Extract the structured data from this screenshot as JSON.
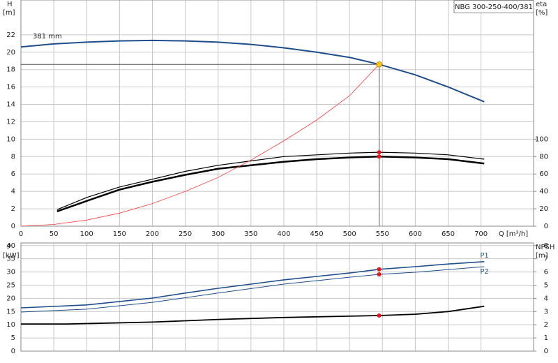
{
  "chart_data": [
    {
      "type": "line",
      "title": "NBG 300-250-400/381",
      "y_label": "H",
      "y_unit": "[m]",
      "y2_label": "eta",
      "y2_unit": "[%]",
      "x_label": "Q [m³/h]",
      "annotation": "381 mm",
      "grid": true,
      "xlim": [
        0,
        780
      ],
      "xticks": [
        0,
        50,
        100,
        150,
        200,
        250,
        300,
        350,
        400,
        450,
        500,
        550,
        600,
        650,
        700
      ],
      "ylim": [
        0,
        26
      ],
      "yticks": [
        0,
        2,
        4,
        6,
        8,
        10,
        12,
        14,
        16,
        18,
        20,
        22
      ],
      "y2lim": [
        0,
        260
      ],
      "y2ticks": [
        0,
        20,
        40,
        60,
        80,
        100
      ],
      "series": [
        {
          "color": "#1f4e8c",
          "width": 2,
          "x": [
            0,
            50,
            100,
            150,
            200,
            250,
            300,
            350,
            400,
            450,
            500,
            545,
            600,
            650,
            705
          ],
          "values": [
            20.6,
            20.95,
            21.15,
            21.3,
            21.35,
            21.3,
            21.15,
            20.9,
            20.5,
            20.0,
            19.4,
            18.6,
            17.4,
            16.0,
            14.3
          ]
        },
        {
          "color": "#000000",
          "width": 1.2,
          "axis": "y2",
          "x": [
            55,
            100,
            150,
            200,
            250,
            300,
            350,
            400,
            450,
            500,
            545,
            600,
            650,
            705
          ],
          "values": [
            19,
            33,
            45,
            54,
            63,
            70,
            75,
            80,
            82,
            84,
            85,
            84,
            82,
            77
          ]
        },
        {
          "color": "#000000",
          "width": 2.5,
          "axis": "y2",
          "x": [
            55,
            100,
            150,
            200,
            250,
            300,
            350,
            400,
            450,
            500,
            545,
            600,
            650,
            705
          ],
          "values": [
            17,
            29,
            42,
            51,
            59,
            66,
            70,
            74,
            77,
            79,
            80,
            79,
            77,
            72
          ]
        },
        {
          "color": "#ff3b3b",
          "width": 0.8,
          "x": [
            0,
            50,
            100,
            150,
            200,
            250,
            300,
            350,
            400,
            450,
            500,
            545
          ],
          "values": [
            0,
            0.2,
            0.7,
            1.5,
            2.6,
            4.0,
            5.6,
            7.6,
            9.8,
            12.2,
            15.0,
            18.6
          ]
        }
      ],
      "operating_point": {
        "x": 545,
        "y": 18.6,
        "color": "#f5c518"
      },
      "markers": [
        {
          "x": 545,
          "value": 85,
          "axis": "y2",
          "color": "#e8141a"
        },
        {
          "x": 545,
          "value": 80,
          "axis": "y2",
          "color": "#e8141a"
        }
      ]
    },
    {
      "type": "line",
      "y_label": "P",
      "y_unit": "[kW]",
      "y2_label": "NPSH",
      "y2_unit": "[m]",
      "grid": true,
      "ylim": [
        0,
        41
      ],
      "yticks": [
        0,
        5,
        10,
        15,
        20,
        25,
        30,
        35,
        40
      ],
      "y2lim": [
        0,
        8.2
      ],
      "y2ticks": [
        0,
        1,
        2,
        3,
        4,
        5,
        6,
        7,
        8
      ],
      "series": [
        {
          "name": "P1",
          "color": "#1f4e8c",
          "width": 1.6,
          "x": [
            0,
            100,
            150,
            200,
            250,
            300,
            350,
            400,
            450,
            500,
            545,
            600,
            650,
            705
          ],
          "values": [
            16.4,
            17.5,
            18.8,
            20.1,
            22,
            23.8,
            25.4,
            27,
            28.3,
            29.6,
            31,
            32,
            33,
            33.9
          ]
        },
        {
          "name": "P2",
          "color": "#1f4e8c",
          "width": 1,
          "x": [
            0,
            100,
            200,
            300,
            400,
            500,
            545,
            600,
            705
          ],
          "values": [
            14.8,
            15.9,
            18.5,
            22,
            25.4,
            28,
            29.1,
            29.9,
            32
          ]
        },
        {
          "color": "#000000",
          "width": 1.8,
          "axis": "y2",
          "x": [
            0,
            70,
            200,
            300,
            400,
            500,
            545,
            600,
            650,
            705
          ],
          "values": [
            2.06,
            2.06,
            2.2,
            2.4,
            2.55,
            2.65,
            2.7,
            2.8,
            3.0,
            3.4
          ]
        }
      ],
      "markers": [
        {
          "x": 545,
          "value": 31,
          "color": "#e8141a"
        },
        {
          "x": 545,
          "value": 29.1,
          "color": "#e8141a"
        },
        {
          "x": 545,
          "value": 2.7,
          "axis": "y2",
          "color": "#e8141a"
        }
      ]
    }
  ]
}
